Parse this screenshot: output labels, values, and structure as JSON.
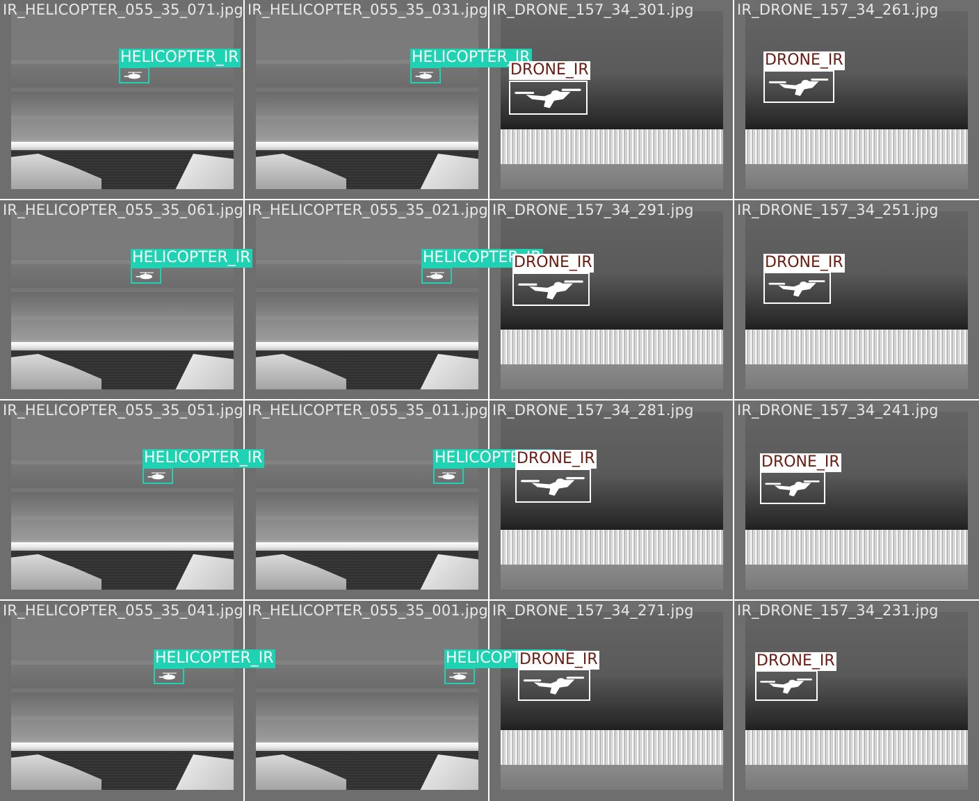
{
  "mosaic": {
    "class_colors": {
      "HELICOPTER_IR": "#1ed3b3",
      "DRONE_IR": "#ffffff",
      "drone_label_text": "#6b1a0e"
    },
    "tiles": [
      {
        "row": 0,
        "col": 0,
        "filename": "IR_HELICOPTER_055_35_071.jpg",
        "scene": "sea",
        "label": "HELICOPTER_IR",
        "object_icon": "helicopter-icon"
      },
      {
        "row": 0,
        "col": 1,
        "filename": "IR_HELICOPTER_055_35_031.jpg",
        "scene": "sea",
        "label": "HELICOPTER_IR",
        "object_icon": "helicopter-icon"
      },
      {
        "row": 0,
        "col": 2,
        "filename": "IR_DRONE_157_34_301.jpg",
        "scene": "forest",
        "label": "DRONE_IR",
        "object_icon": "drone-icon"
      },
      {
        "row": 0,
        "col": 3,
        "filename": "IR_DRONE_157_34_261.jpg",
        "scene": "forest",
        "label": "DRONE_IR",
        "object_icon": "drone-icon"
      },
      {
        "row": 1,
        "col": 0,
        "filename": "IR_HELICOPTER_055_35_061.jpg",
        "scene": "sea",
        "label": "HELICOPTER_IR",
        "object_icon": "helicopter-icon"
      },
      {
        "row": 1,
        "col": 1,
        "filename": "IR_HELICOPTER_055_35_021.jpg",
        "scene": "sea",
        "label": "HELICOPTER_IR",
        "object_icon": "helicopter-icon"
      },
      {
        "row": 1,
        "col": 2,
        "filename": "IR_DRONE_157_34_291.jpg",
        "scene": "forest",
        "label": "DRONE_IR",
        "object_icon": "drone-icon"
      },
      {
        "row": 1,
        "col": 3,
        "filename": "IR_DRONE_157_34_251.jpg",
        "scene": "forest",
        "label": "DRONE_IR",
        "object_icon": "drone-icon"
      },
      {
        "row": 2,
        "col": 0,
        "filename": "IR_HELICOPTER_055_35_051.jpg",
        "scene": "sea",
        "label": "HELICOPTER_IR",
        "object_icon": "helicopter-icon"
      },
      {
        "row": 2,
        "col": 1,
        "filename": "IR_HELICOPTER_055_35_011.jpg",
        "scene": "sea",
        "label": "HELICOPTER_IR",
        "object_icon": "helicopter-icon"
      },
      {
        "row": 2,
        "col": 2,
        "filename": "IR_DRONE_157_34_281.jpg",
        "scene": "forest",
        "label": "DRONE_IR",
        "object_icon": "drone-icon"
      },
      {
        "row": 2,
        "col": 3,
        "filename": "IR_DRONE_157_34_241.jpg",
        "scene": "forest",
        "label": "DRONE_IR",
        "object_icon": "drone-icon"
      },
      {
        "row": 3,
        "col": 0,
        "filename": "IR_HELICOPTER_055_35_041.jpg",
        "scene": "sea",
        "label": "HELICOPTER_IR",
        "object_icon": "helicopter-icon"
      },
      {
        "row": 3,
        "col": 1,
        "filename": "IR_HELICOPTER_055_35_001.jpg",
        "scene": "sea",
        "label": "HELICOPTER_IR",
        "object_icon": "helicopter-icon"
      },
      {
        "row": 3,
        "col": 2,
        "filename": "IR_DRONE_157_34_271.jpg",
        "scene": "forest",
        "label": "DRONE_IR",
        "object_icon": "drone-icon"
      },
      {
        "row": 3,
        "col": 3,
        "filename": "IR_DRONE_157_34_231.jpg",
        "scene": "forest",
        "label": "DRONE_IR",
        "object_icon": "drone-icon"
      }
    ]
  }
}
